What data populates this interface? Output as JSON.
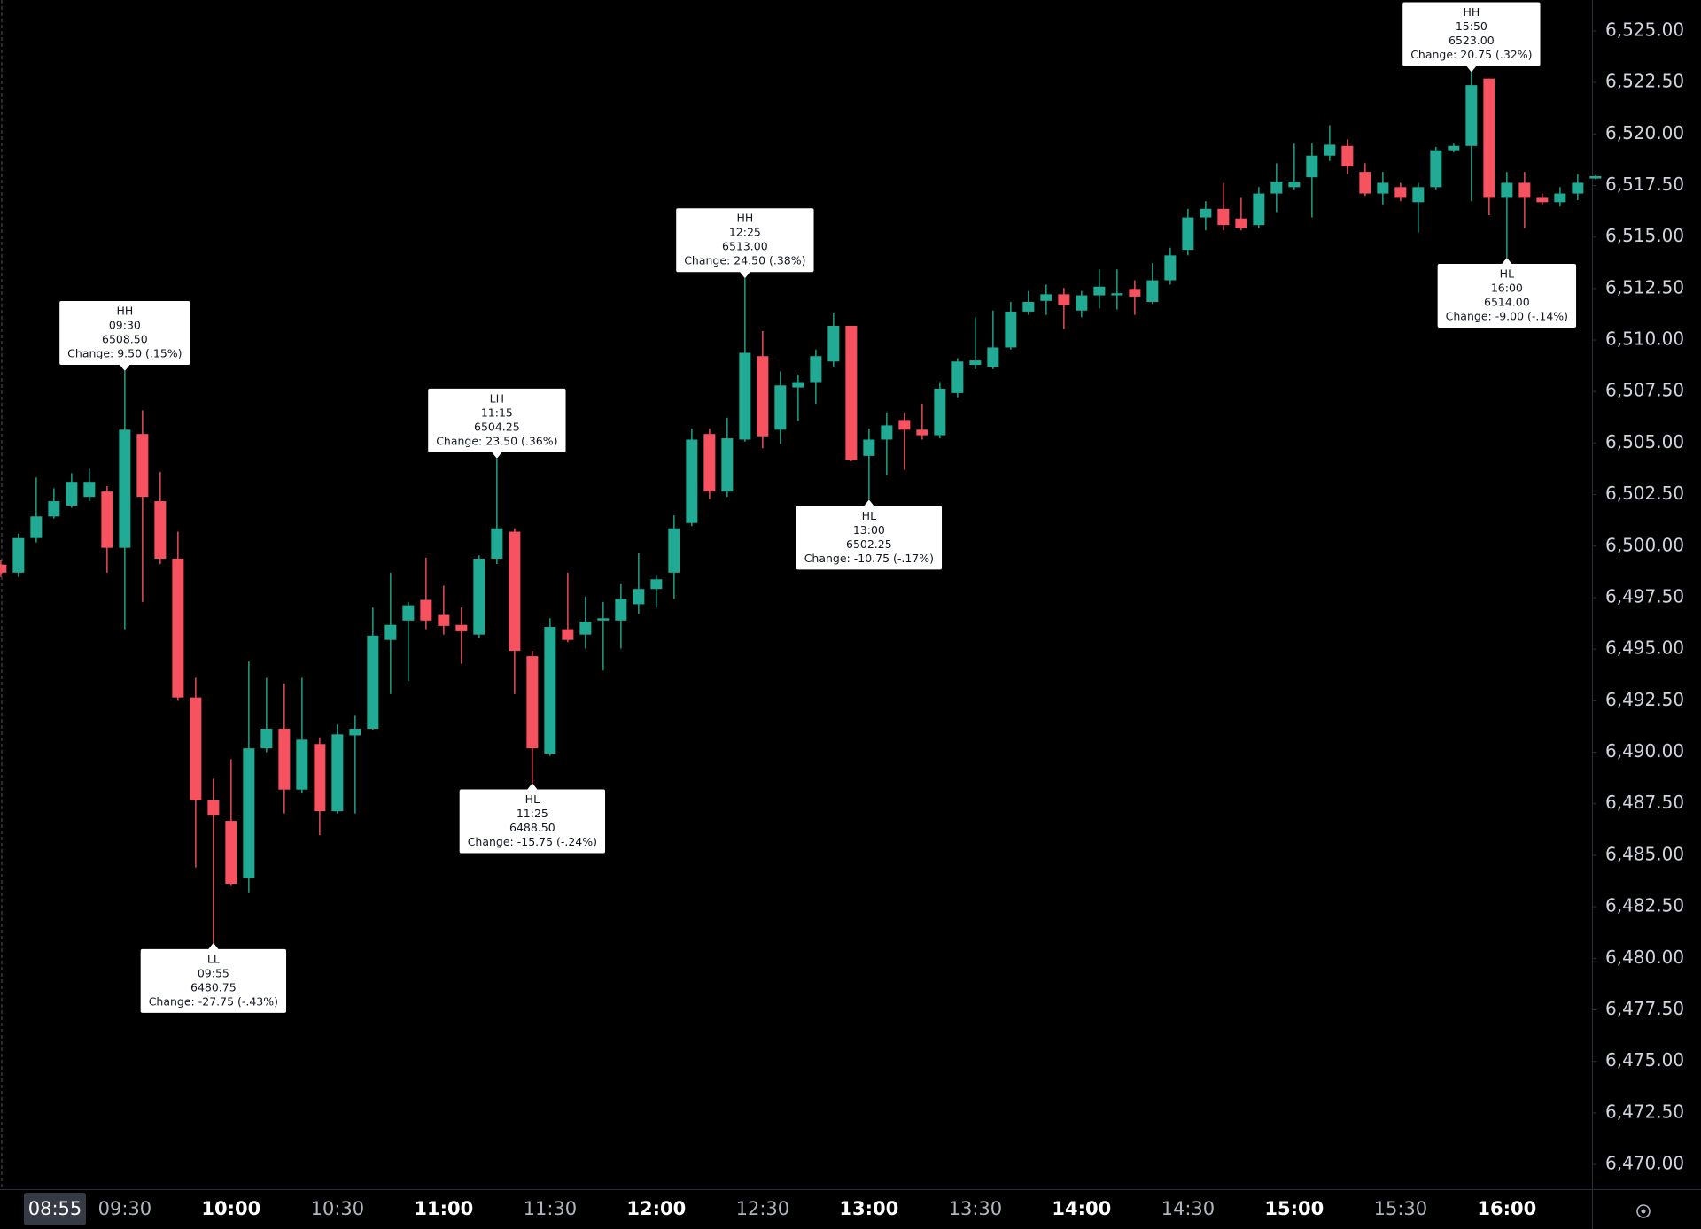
{
  "chart_data": {
    "type": "candlestick",
    "up_color": "#22ab94",
    "down_color": "#f7525f",
    "crosshair_time": "08:55",
    "ylim": [
      6468.8,
      6526.5
    ],
    "yticks": [
      {
        "value": 6470,
        "label": "6,470.00"
      },
      {
        "value": 6472.5,
        "label": "6,472.50"
      },
      {
        "value": 6475,
        "label": "6,475.00"
      },
      {
        "value": 6477.5,
        "label": "6,477.50"
      },
      {
        "value": 6480,
        "label": "6,480.00"
      },
      {
        "value": 6482.5,
        "label": "6,482.50"
      },
      {
        "value": 6485,
        "label": "6,485.00"
      },
      {
        "value": 6487.5,
        "label": "6,487.50"
      },
      {
        "value": 6490,
        "label": "6,490.00"
      },
      {
        "value": 6492.5,
        "label": "6,492.50"
      },
      {
        "value": 6495,
        "label": "6,495.00"
      },
      {
        "value": 6497.5,
        "label": "6,497.50"
      },
      {
        "value": 6500,
        "label": "6,500.00"
      },
      {
        "value": 6502.5,
        "label": "6,502.50"
      },
      {
        "value": 6505,
        "label": "6,505.00"
      },
      {
        "value": 6507.5,
        "label": "6,507.50"
      },
      {
        "value": 6510,
        "label": "6,510.00"
      },
      {
        "value": 6512.5,
        "label": "6,512.50"
      },
      {
        "value": 6515,
        "label": "6,515.00"
      },
      {
        "value": 6517.5,
        "label": "6,517.50"
      },
      {
        "value": 6520,
        "label": "6,520.00"
      },
      {
        "value": 6522.5,
        "label": "6,522.50"
      },
      {
        "value": 6525,
        "label": "6,525.00"
      }
    ],
    "categories": [
      null,
      null,
      null,
      null,
      null,
      null,
      null,
      "09:30",
      null,
      null,
      null,
      null,
      null,
      "10:00",
      null,
      null,
      null,
      null,
      null,
      "10:30",
      null,
      null,
      null,
      null,
      null,
      "11:00",
      null,
      null,
      null,
      null,
      null,
      "11:30",
      null,
      null,
      null,
      null,
      null,
      "12:00",
      null,
      null,
      null,
      null,
      null,
      "12:30",
      null,
      null,
      null,
      null,
      null,
      "13:00",
      null,
      null,
      null,
      null,
      null,
      "13:30",
      null,
      null,
      null,
      null,
      null,
      "14:00",
      null,
      null,
      null,
      null,
      null,
      "14:30",
      null,
      null,
      null,
      null,
      null,
      "15:00",
      null,
      null,
      null,
      null,
      null,
      "15:30",
      null,
      null,
      null,
      null,
      null,
      "16:00",
      null,
      null,
      null,
      null,
      null
    ],
    "open": [
      6499.1,
      6498.71,
      6500.39,
      6501.44,
      6501.97,
      6502.39,
      6502.65,
      6499.92,
      6505.44,
      6502.18,
      6499.39,
      6492.66,
      6487.67,
      6486.67,
      6483.88,
      6490.19,
      6491.14,
      6488.19,
      6490.4,
      6487.14,
      6490.82,
      6491.14,
      6495.45,
      6496.39,
      6497.39,
      6496.66,
      6496.18,
      6495.71,
      6499.39,
      6500.7,
      6494.66,
      6489.93,
      6495.97,
      6495.71,
      6496.39,
      6496.39,
      6497.18,
      6497.92,
      6498.71,
      6501.12,
      6505.44,
      6502.65,
      6505.17,
      6509.22,
      6505.65,
      6507.7,
      6507.96,
      6508.96,
      6510.69,
      6504.38,
      6505.17,
      6506.12,
      6505.65,
      6505.38,
      6507.43,
      6508.8,
      6508.7,
      6509.64,
      6511.38,
      6511.9,
      6512.22,
      6511.43,
      6512.17,
      6512.17,
      6512.48,
      6511.85,
      6512.9,
      6514.38,
      6515.95,
      6516.37,
      6515.9,
      6515.58,
      6517.11,
      6517.42,
      6517.9,
      6518.95,
      6519.42,
      6518.16,
      6517.11,
      6517.42,
      6516.69,
      6517.42,
      6519.21,
      6519.42,
      6522.69,
      6516.9,
      6517.63,
      6516.9,
      6516.69,
      6517.11,
      6517.84
    ],
    "high": [
      6499.3,
      6500.6,
      6503.33,
      6502.81,
      6503.54,
      6503.75,
      6502.91,
      6508.5,
      6506.59,
      6503.6,
      6500.7,
      6493.61,
      6488.72,
      6489.66,
      6494.4,
      6493.61,
      6493.34,
      6493.61,
      6490.72,
      6491.35,
      6491.77,
      6497.02,
      6498.71,
      6497.29,
      6499.44,
      6498.08,
      6497.02,
      6499.55,
      6504.25,
      6500.86,
      6494.92,
      6496.5,
      6498.71,
      6497.55,
      6497.29,
      6498.18,
      6499.65,
      6498.6,
      6501.49,
      6505.7,
      6505.7,
      6506.23,
      6513,
      6510.43,
      6508.48,
      6508.33,
      6509.54,
      6511.33,
      6510.69,
      6505.7,
      6506.49,
      6506.49,
      6506.91,
      6507.96,
      6509.12,
      6511.11,
      6511.43,
      6511.85,
      6512.38,
      6512.69,
      6512.53,
      6512.38,
      6513.43,
      6513.43,
      6512.9,
      6513.74,
      6514.48,
      6516.37,
      6516.74,
      6517.63,
      6516.9,
      6517.42,
      6518.58,
      6519.53,
      6519.53,
      6520.42,
      6519.74,
      6518.58,
      6518.16,
      6517.63,
      6517.63,
      6519.37,
      6519.53,
      6523,
      6522.69,
      6518.16,
      6518.16,
      6517.11,
      6517.42,
      6518.05,
      6518
    ],
    "low": [
      6498.5,
      6498.5,
      6500.18,
      6501.34,
      6501.86,
      6502.18,
      6498.71,
      6495.97,
      6497.29,
      6499.13,
      6492.5,
      6484.41,
      6480.75,
      6483.51,
      6483.2,
      6490,
      6487.03,
      6488,
      6485.98,
      6487.03,
      6487.03,
      6491.1,
      6492.82,
      6493.45,
      6495.97,
      6495.71,
      6494.29,
      6495.55,
      6499.13,
      6492.82,
      6488.5,
      6489.82,
      6495.34,
      6495.03,
      6493.97,
      6495.03,
      6496.71,
      6497.02,
      6497.44,
      6500.97,
      6502.28,
      6502.39,
      6505.07,
      6504.75,
      6504.96,
      6506.07,
      6506.91,
      6508.7,
      6504.12,
      6502.25,
      6503.44,
      6503.7,
      6505.17,
      6505.23,
      6507.22,
      6508.59,
      6508.59,
      6509.54,
      6511.22,
      6511.22,
      6510.54,
      6511.11,
      6511.53,
      6511.48,
      6511.22,
      6511.75,
      6512.69,
      6514.11,
      6515.32,
      6515.32,
      6515.32,
      6515.43,
      6516.21,
      6517.27,
      6515.95,
      6518.69,
      6518.05,
      6517,
      6516.58,
      6516.74,
      6515.22,
      6517.27,
      6519.11,
      6516.74,
      6516.06,
      6514,
      6515.43,
      6516.58,
      6516.48,
      6516.79,
      6517.8
    ],
    "close": [
      6498.71,
      6500.39,
      6501.44,
      6502.18,
      6503.12,
      6503.12,
      6499.92,
      6505.65,
      6502.39,
      6499.39,
      6492.66,
      6487.67,
      6486.93,
      6483.62,
      6490.19,
      6491.14,
      6488.19,
      6490.61,
      6487.14,
      6490.87,
      6491.14,
      6495.66,
      6496.18,
      6497.13,
      6496.39,
      6496.13,
      6495.87,
      6499.39,
      6500.86,
      6494.92,
      6490.19,
      6496.08,
      6495.45,
      6496.34,
      6496.5,
      6497.44,
      6497.92,
      6498.39,
      6500.86,
      6505.17,
      6502.65,
      6505.23,
      6509.38,
      6505.33,
      6507.8,
      6507.96,
      6509.22,
      6510.69,
      6504.17,
      6505.17,
      6505.86,
      6505.65,
      6505.38,
      6507.64,
      6508.96,
      6509.01,
      6509.64,
      6511.38,
      6511.85,
      6512.22,
      6511.69,
      6512.17,
      6512.59,
      6512.27,
      6512.11,
      6512.9,
      6514.11,
      6515.95,
      6516.37,
      6515.58,
      6515.43,
      6517.11,
      6517.69,
      6517.69,
      6518.95,
      6519.48,
      6518.42,
      6517.11,
      6517.63,
      6516.9,
      6517.42,
      6519.21,
      6519.42,
      6522.37,
      6516.9,
      6517.63,
      6516.9,
      6516.69,
      6517.11,
      6517.63,
      6517.95
    ],
    "annotations": [
      {
        "label": "HH",
        "time": "09:30",
        "price": "6508.50",
        "change": "Change: 9.50 (.15%)"
      },
      {
        "label": "LL",
        "time": "09:55",
        "price": "6480.75",
        "change": "Change: -27.75 (-.43%)"
      },
      {
        "label": "LH",
        "time": "11:15",
        "price": "6504.25",
        "change": "Change: 23.50 (.36%)"
      },
      {
        "label": "HL",
        "time": "11:25",
        "price": "6488.50",
        "change": "Change: -15.75 (-.24%)"
      },
      {
        "label": "HH",
        "time": "12:25",
        "price": "6513.00",
        "change": "Change: 24.50 (.38%)"
      },
      {
        "label": "HL",
        "time": "13:00",
        "price": "6502.25",
        "change": "Change: -10.75 (-.17%)"
      },
      {
        "label": "HH",
        "time": "15:50",
        "price": "6523.00",
        "change": "Change: 20.75 (.32%)"
      },
      {
        "label": "HL",
        "time": "16:00",
        "price": "6514.00",
        "change": "Change: -9.00 (-.14%)"
      }
    ]
  }
}
